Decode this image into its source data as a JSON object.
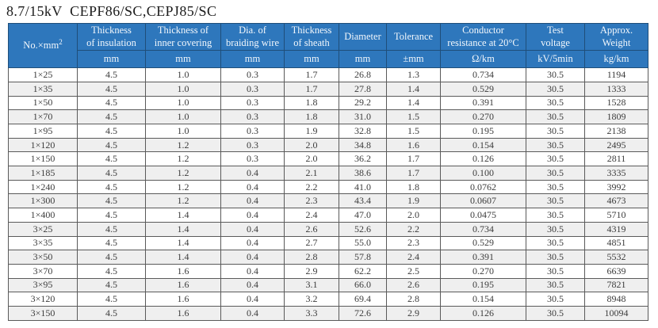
{
  "title": "8.7/15kV  CEPF86/SC,CEPJ85/SC",
  "colors": {
    "header_bg": "#2e77bc",
    "header_text": "#f2f7fc",
    "header_border": "#1f4e79",
    "row_stripe": "#efefef",
    "data_text": "#3c3c3c"
  },
  "table": {
    "first_column": {
      "label_base": "No.×mm",
      "label_sup": "2"
    },
    "columns": [
      {
        "label": "Thickness\nof insulation",
        "unit": "mm"
      },
      {
        "label": "Thickness of\ninner covering",
        "unit": "mm"
      },
      {
        "label": "Dia. of\nbraiding wire",
        "unit": "mm"
      },
      {
        "label": "Thickness\nof sheath",
        "unit": "mm"
      },
      {
        "label": "Diameter",
        "unit": "mm"
      },
      {
        "label": "Tolerance",
        "unit": "±mm"
      },
      {
        "label": "Conductor\nresistance at 20°C",
        "unit": "Ω/km"
      },
      {
        "label": "Test\nvoltage",
        "unit": "kV/5min"
      },
      {
        "label": "Approx.\nWeight",
        "unit": "kg/km"
      }
    ],
    "rows": [
      [
        "1×25",
        "4.5",
        "1.0",
        "0.3",
        "1.7",
        "26.8",
        "1.3",
        "0.734",
        "30.5",
        "1194"
      ],
      [
        "1×35",
        "4.5",
        "1.0",
        "0.3",
        "1.7",
        "27.8",
        "1.4",
        "0.529",
        "30.5",
        "1333"
      ],
      [
        "1×50",
        "4.5",
        "1.0",
        "0.3",
        "1.8",
        "29.2",
        "1.4",
        "0.391",
        "30.5",
        "1528"
      ],
      [
        "1×70",
        "4.5",
        "1.0",
        "0.3",
        "1.8",
        "31.0",
        "1.5",
        "0.270",
        "30.5",
        "1809"
      ],
      [
        "1×95",
        "4.5",
        "1.0",
        "0.3",
        "1.9",
        "32.8",
        "1.5",
        "0.195",
        "30.5",
        "2138"
      ],
      [
        "1×120",
        "4.5",
        "1.2",
        "0.3",
        "2.0",
        "34.8",
        "1.6",
        "0.154",
        "30.5",
        "2495"
      ],
      [
        "1×150",
        "4.5",
        "1.2",
        "0.3",
        "2.0",
        "36.2",
        "1.7",
        "0.126",
        "30.5",
        "2811"
      ],
      [
        "1×185",
        "4.5",
        "1.2",
        "0.4",
        "2.1",
        "38.6",
        "1.7",
        "0.100",
        "30.5",
        "3335"
      ],
      [
        "1×240",
        "4.5",
        "1.2",
        "0.4",
        "2.2",
        "41.0",
        "1.8",
        "0.0762",
        "30.5",
        "3992"
      ],
      [
        "1×300",
        "4.5",
        "1.2",
        "0.4",
        "2.3",
        "43.4",
        "1.9",
        "0.0607",
        "30.5",
        "4673"
      ],
      [
        "1×400",
        "4.5",
        "1.4",
        "0.4",
        "2.4",
        "47.0",
        "2.0",
        "0.0475",
        "30.5",
        "5710"
      ],
      [
        "3×25",
        "4.5",
        "1.4",
        "0.4",
        "2.6",
        "52.6",
        "2.2",
        "0.734",
        "30.5",
        "4319"
      ],
      [
        "3×35",
        "4.5",
        "1.4",
        "0.4",
        "2.7",
        "55.0",
        "2.3",
        "0.529",
        "30.5",
        "4851"
      ],
      [
        "3×50",
        "4.5",
        "1.4",
        "0.4",
        "2.8",
        "57.8",
        "2.4",
        "0.391",
        "30.5",
        "5532"
      ],
      [
        "3×70",
        "4.5",
        "1.6",
        "0.4",
        "2.9",
        "62.2",
        "2.5",
        "0.270",
        "30.5",
        "6639"
      ],
      [
        "3×95",
        "4.5",
        "1.6",
        "0.4",
        "3.1",
        "66.0",
        "2.6",
        "0.195",
        "30.5",
        "7821"
      ],
      [
        "3×120",
        "4.5",
        "1.6",
        "0.4",
        "3.2",
        "69.4",
        "2.8",
        "0.154",
        "30.5",
        "8948"
      ],
      [
        "3×150",
        "4.5",
        "1.6",
        "0.4",
        "3.3",
        "72.6",
        "2.9",
        "0.126",
        "30.5",
        "10094"
      ]
    ]
  }
}
